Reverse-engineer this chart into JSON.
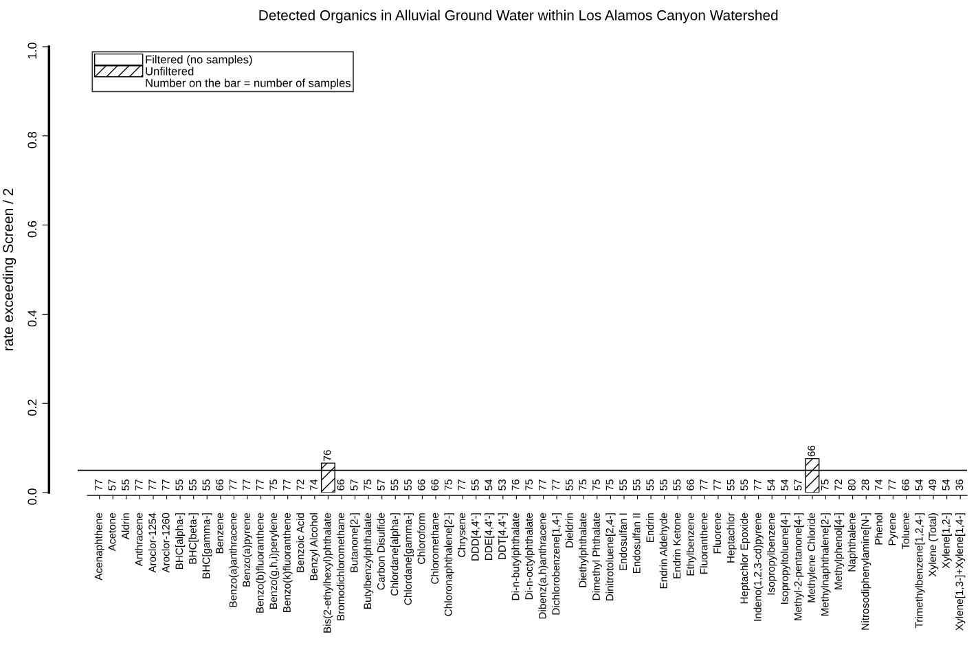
{
  "chart_data": {
    "type": "bar",
    "title": "Detected Organics in Alluvial Ground Water within Los Alamos Canyon Watershed",
    "ylabel": "rate exceeding Screen / 2",
    "categories": [
      "Acenaphthene",
      "Acetone",
      "Aldrin",
      "Anthracene",
      "Aroclor-1254",
      "Aroclor-1260",
      "BHC[alpha-]",
      "BHC[beta-]",
      "BHC[gamma-]",
      "Benzene",
      "Benzo(a)anthracene",
      "Benzo(a)pyrene",
      "Benzo(b)fluoranthene",
      "Benzo(g,h,i)perylene",
      "Benzo(k)fluoranthene",
      "Benzoic Acid",
      "Benzyl Alcohol",
      "Bis(2-ethylhexyl)phthalate",
      "Bromodichloromethane",
      "Butanone[2-]",
      "Butylbenzylphthalate",
      "Carbon Disulfide",
      "Chlordane[alpha-]",
      "Chlordane[gamma-]",
      "Chloroform",
      "Chloromethane",
      "Chloronaphthalene[2-]",
      "Chrysene",
      "DDD[4,4'-]",
      "DDE[4,4'-]",
      "DDT[4,4'-]",
      "Di-n-butylphthalate",
      "Di-n-octylphthalate",
      "Dibenz(a,h)anthracene",
      "Dichlorobenzene[1,4-]",
      "Dieldrin",
      "Diethylphthalate",
      "Dimethyl Phthalate",
      "Dinitrotoluene[2,4-]",
      "Endosulfan I",
      "Endosulfan II",
      "Endrin",
      "Endrin Aldehyde",
      "Endrin Ketone",
      "Ethylbenzene",
      "Fluoranthene",
      "Fluorene",
      "Heptachlor",
      "Heptachlor Epoxide",
      "Indeno(1,2,3-cd)pyrene",
      "Isopropylbenzene",
      "Isopropyltoluene[4-]",
      "Methyl-2-pentanone[4-]",
      "Methylene Chloride",
      "Methylnaphthalene[2-]",
      "Methylphenol[4-]",
      "Naphthalene",
      "Nitrosodiphenylamine[N-]",
      "Phenol",
      "Pyrene",
      "Toluene",
      "Trimethylbenzene[1,2,4-]",
      "Xylene (Total)",
      "Xylene[1,2-]",
      "Xylene[1,3-]+Xylene[1,4-]"
    ],
    "series": [
      {
        "name": "Filtered (no samples)",
        "color": "#ffffff",
        "values": [
          null,
          null,
          null,
          null,
          null,
          null,
          null,
          null,
          null,
          null,
          null,
          null,
          null,
          null,
          null,
          null,
          null,
          null,
          null,
          null,
          null,
          null,
          null,
          null,
          null,
          null,
          null,
          null,
          null,
          null,
          null,
          null,
          null,
          null,
          null,
          null,
          null,
          null,
          null,
          null,
          null,
          null,
          null,
          null,
          null,
          null,
          null,
          null,
          null,
          null,
          null,
          null,
          null,
          null,
          null,
          null,
          null,
          null,
          null,
          null,
          null,
          null,
          null,
          null,
          null
        ]
      },
      {
        "name": "Unfiltered",
        "color": "#000000",
        "values": [
          0,
          0,
          0,
          0,
          0,
          0,
          0,
          0,
          0,
          0,
          0,
          0,
          0,
          0,
          0,
          0,
          0,
          0.066,
          0,
          0,
          0,
          0,
          0,
          0,
          0,
          0,
          0,
          0,
          0,
          0,
          0,
          0,
          0,
          0,
          0,
          0,
          0,
          0,
          0,
          0,
          0,
          0,
          0,
          0,
          0,
          0,
          0,
          0,
          0,
          0,
          0,
          0,
          0,
          0.076,
          0,
          0,
          0,
          0,
          0,
          0,
          0,
          0,
          0,
          0,
          0
        ]
      }
    ],
    "ylim": [
      0,
      1
    ],
    "yticks": [
      {
        "value": 0,
        "label": "0.0"
      },
      {
        "value": 0.2,
        "label": "0.2"
      },
      {
        "value": 0.4,
        "label": "0.4"
      },
      {
        "value": 0.6,
        "label": "0.6"
      },
      {
        "value": 0.8,
        "label": "0.8"
      },
      {
        "value": 1,
        "label": "1.0"
      }
    ],
    "ref_lines": [
      {
        "axis": "y",
        "value": 0.05,
        "color": "#000000"
      }
    ],
    "legend": "top left",
    "grid": false,
    "annotations": [
      "Number on the bar = number of samples",
      {
        "text": "77",
        "x": "Acenaphthene",
        "y": 0
      },
      {
        "text": "57",
        "x": "Acetone",
        "y": 0
      },
      {
        "text": "55",
        "x": "Aldrin",
        "y": 0
      },
      {
        "text": "77",
        "x": "Anthracene",
        "y": 0
      },
      {
        "text": "77",
        "x": "Aroclor-1254",
        "y": 0
      },
      {
        "text": "77",
        "x": "Aroclor-1260",
        "y": 0
      },
      {
        "text": "55",
        "x": "BHC[alpha-]",
        "y": 0
      },
      {
        "text": "55",
        "x": "BHC[beta-]",
        "y": 0
      },
      {
        "text": "55",
        "x": "BHC[gamma-]",
        "y": 0
      },
      {
        "text": "66",
        "x": "Benzene",
        "y": 0
      },
      {
        "text": "77",
        "x": "Benzo(a)anthracene",
        "y": 0
      },
      {
        "text": "77",
        "x": "Benzo(a)pyrene",
        "y": 0
      },
      {
        "text": "77",
        "x": "Benzo(b)fluoranthene",
        "y": 0
      },
      {
        "text": "75",
        "x": "Benzo(g,h,i)perylene",
        "y": 0
      },
      {
        "text": "77",
        "x": "Benzo(k)fluoranthene",
        "y": 0
      },
      {
        "text": "72",
        "x": "Benzoic Acid",
        "y": 0
      },
      {
        "text": "74",
        "x": "Benzyl Alcohol",
        "y": 0
      },
      {
        "text": "76",
        "x": "Bis(2-ethylhexyl)phthalate",
        "y": 0.066
      },
      {
        "text": "66",
        "x": "Bromodichloromethane",
        "y": 0
      },
      {
        "text": "57",
        "x": "Butanone[2-]",
        "y": 0
      },
      {
        "text": "75",
        "x": "Butylbenzylphthalate",
        "y": 0
      },
      {
        "text": "57",
        "x": "Carbon Disulfide",
        "y": 0
      },
      {
        "text": "55",
        "x": "Chlordane[alpha-]",
        "y": 0
      },
      {
        "text": "55",
        "x": "Chlordane[gamma-]",
        "y": 0
      },
      {
        "text": "66",
        "x": "Chloroform",
        "y": 0
      },
      {
        "text": "66",
        "x": "Chloromethane",
        "y": 0
      },
      {
        "text": "75",
        "x": "Chloronaphthalene[2-]",
        "y": 0
      },
      {
        "text": "77",
        "x": "Chrysene",
        "y": 0
      },
      {
        "text": "55",
        "x": "DDD[4,4'-]",
        "y": 0
      },
      {
        "text": "54",
        "x": "DDE[4,4'-]",
        "y": 0
      },
      {
        "text": "53",
        "x": "DDT[4,4'-]",
        "y": 0
      },
      {
        "text": "76",
        "x": "Di-n-butylphthalate",
        "y": 0
      },
      {
        "text": "75",
        "x": "Di-n-octylphthalate",
        "y": 0
      },
      {
        "text": "77",
        "x": "Dibenz(a,h)anthracene",
        "y": 0
      },
      {
        "text": "77",
        "x": "Dichlorobenzene[1,4-]",
        "y": 0
      },
      {
        "text": "55",
        "x": "Dieldrin",
        "y": 0
      },
      {
        "text": "75",
        "x": "Diethylphthalate",
        "y": 0
      },
      {
        "text": "75",
        "x": "Dimethyl Phthalate",
        "y": 0
      },
      {
        "text": "75",
        "x": "Dinitrotoluene[2,4-]",
        "y": 0
      },
      {
        "text": "55",
        "x": "Endosulfan I",
        "y": 0
      },
      {
        "text": "55",
        "x": "Endosulfan II",
        "y": 0
      },
      {
        "text": "55",
        "x": "Endrin",
        "y": 0
      },
      {
        "text": "55",
        "x": "Endrin Aldehyde",
        "y": 0
      },
      {
        "text": "55",
        "x": "Endrin Ketone",
        "y": 0
      },
      {
        "text": "66",
        "x": "Ethylbenzene",
        "y": 0
      },
      {
        "text": "77",
        "x": "Fluoranthene",
        "y": 0
      },
      {
        "text": "77",
        "x": "Fluorene",
        "y": 0
      },
      {
        "text": "55",
        "x": "Heptachlor",
        "y": 0
      },
      {
        "text": "55",
        "x": "Heptachlor Epoxide",
        "y": 0
      },
      {
        "text": "77",
        "x": "Indeno(1,2,3-cd)pyrene",
        "y": 0
      },
      {
        "text": "54",
        "x": "Isopropylbenzene",
        "y": 0
      },
      {
        "text": "54",
        "x": "Isopropyltoluene[4-]",
        "y": 0
      },
      {
        "text": "57",
        "x": "Methyl-2-pentanone[4-]",
        "y": 0
      },
      {
        "text": "66",
        "x": "Methylene Chloride",
        "y": 0.076
      },
      {
        "text": "75",
        "x": "Methylnaphthalene[2-]",
        "y": 0
      },
      {
        "text": "72",
        "x": "Methylphenol[4-]",
        "y": 0
      },
      {
        "text": "80",
        "x": "Naphthalene",
        "y": 0
      },
      {
        "text": "28",
        "x": "Nitrosodiphenylamine[N-]",
        "y": 0
      },
      {
        "text": "74",
        "x": "Phenol",
        "y": 0
      },
      {
        "text": "77",
        "x": "Pyrene",
        "y": 0
      },
      {
        "text": "66",
        "x": "Toluene",
        "y": 0
      },
      {
        "text": "54",
        "x": "Trimethylbenzene[1,2,4-]",
        "y": 0
      },
      {
        "text": "49",
        "x": "Xylene (Total)",
        "y": 0
      },
      {
        "text": "54",
        "x": "Xylene[1,2-]",
        "y": 0
      },
      {
        "text": "36",
        "x": "Xylene[1,3-]+Xylene[1,4-]",
        "y": 0
      }
    ]
  }
}
